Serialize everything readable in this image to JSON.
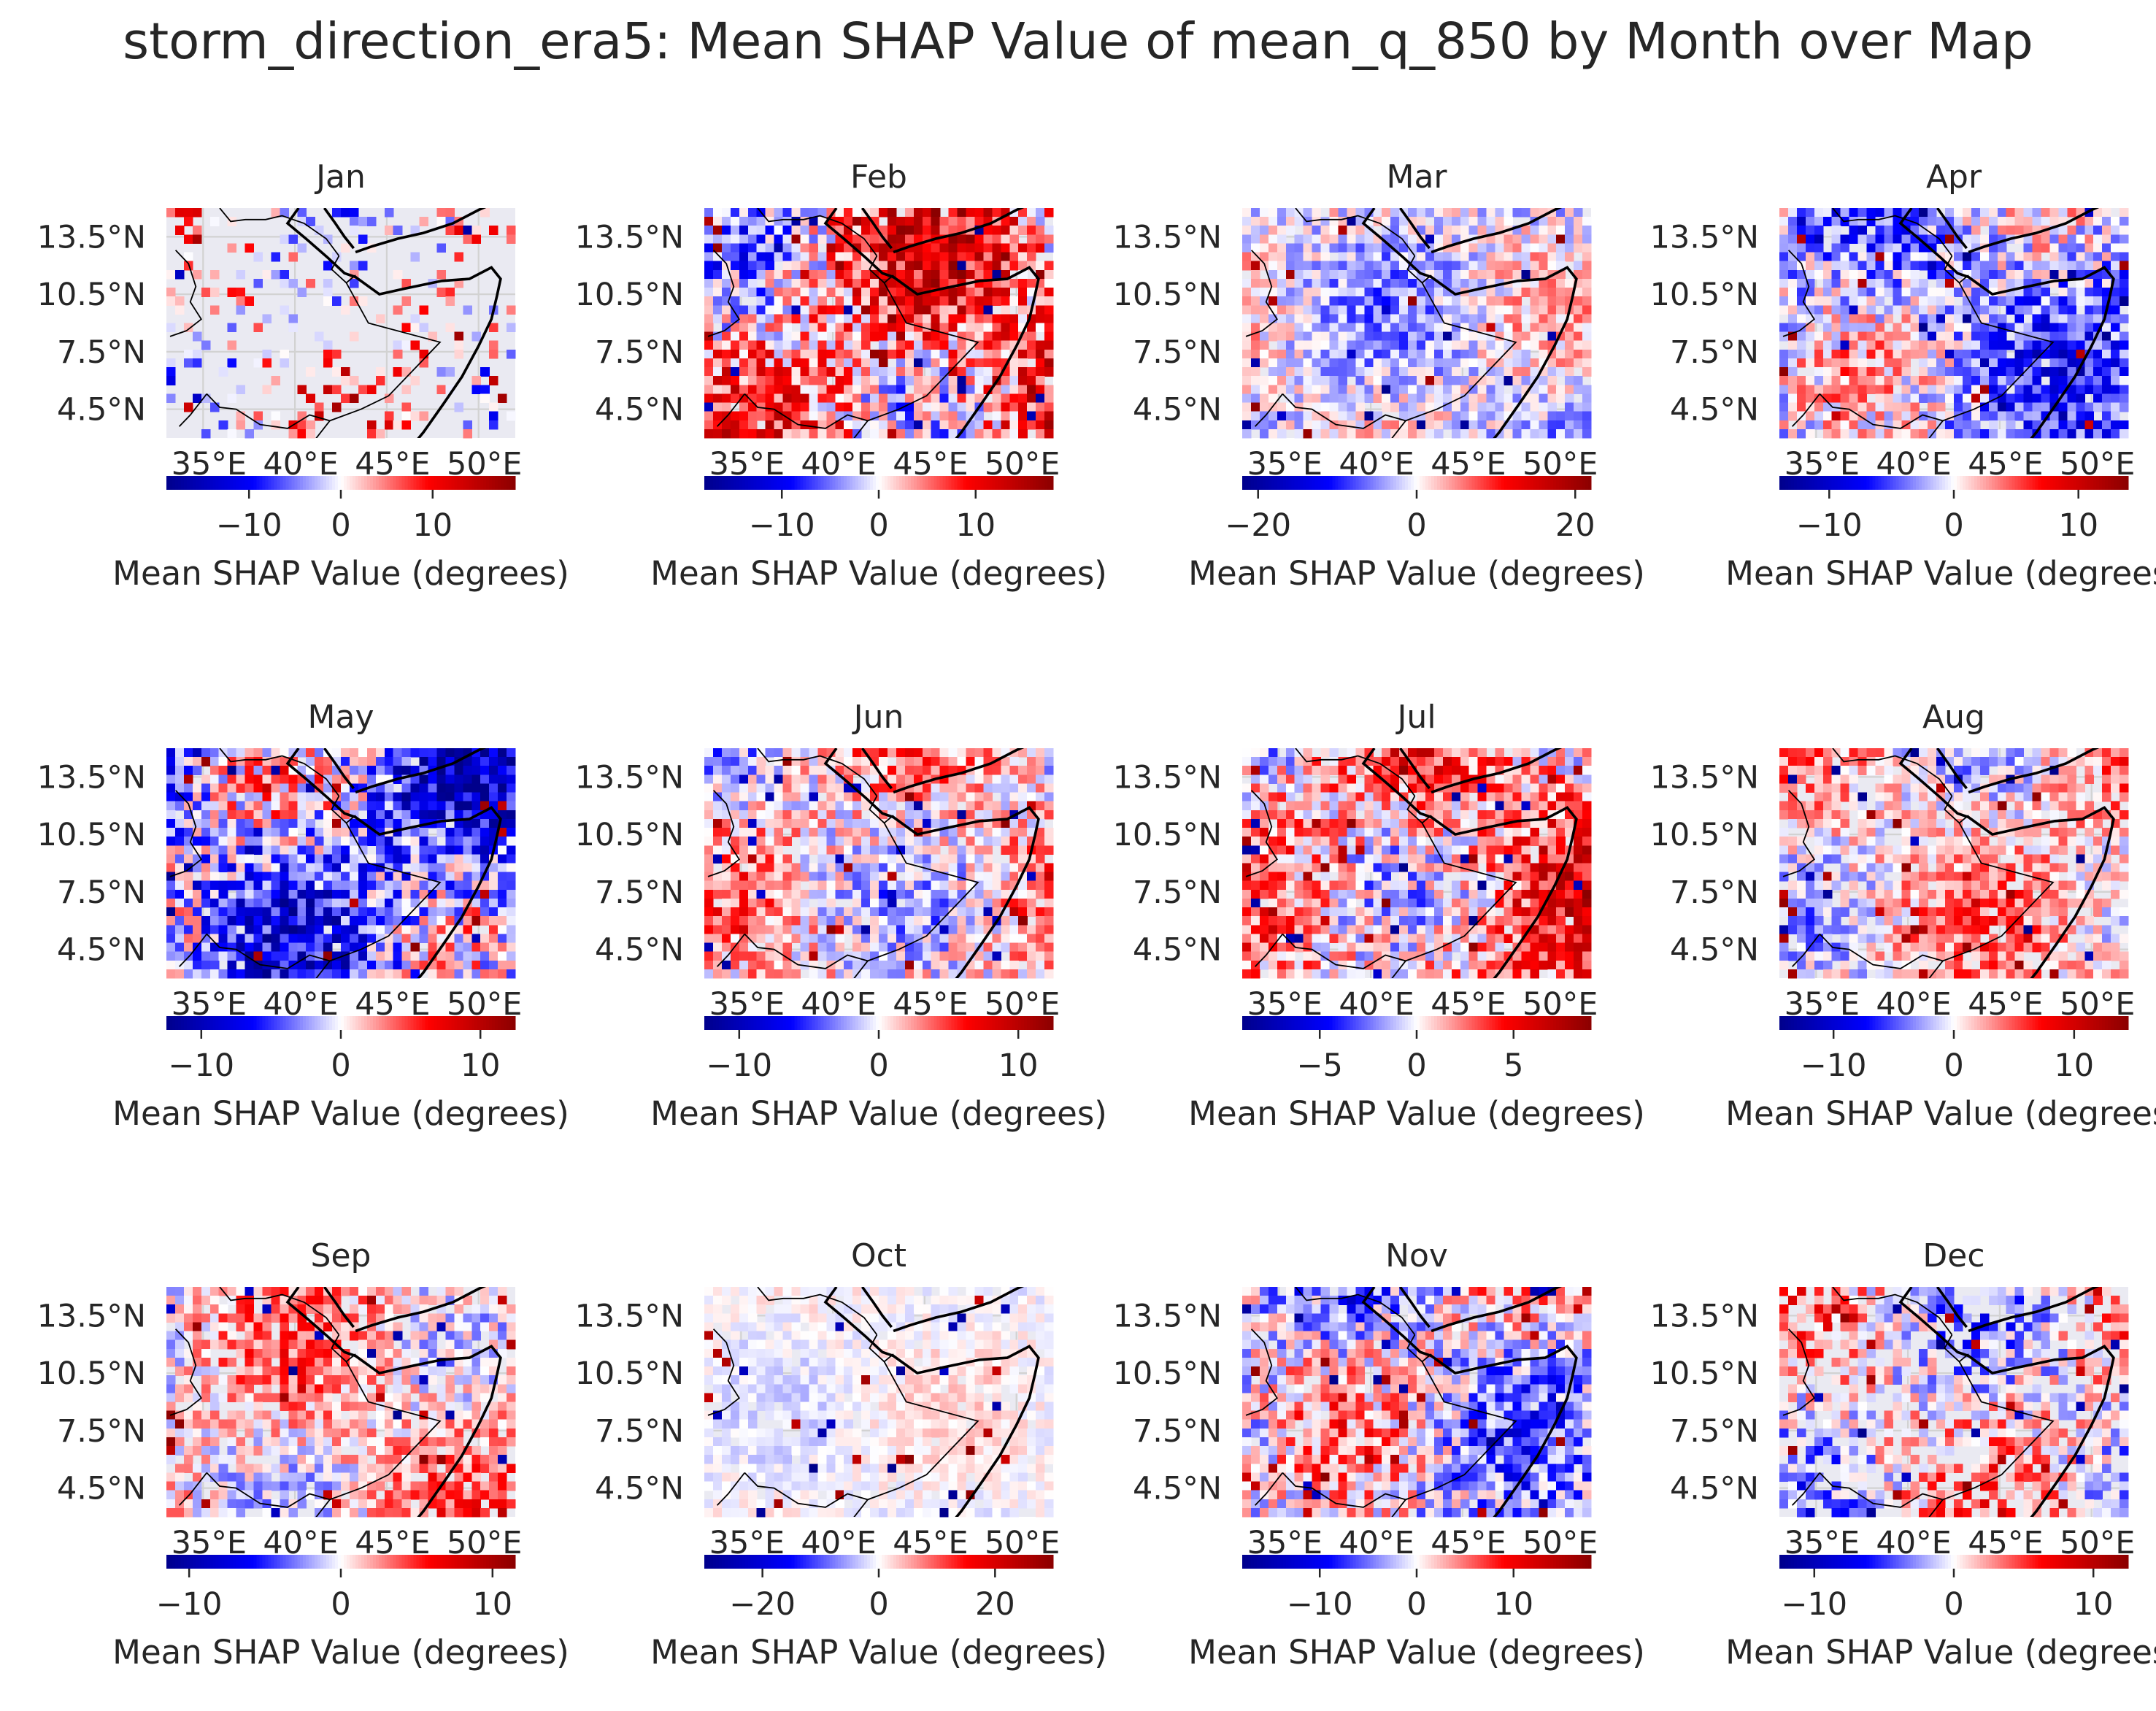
{
  "figure_title": "storm_direction_era5: Mean SHAP Value of mean_q_850 by Month over Map",
  "lat_ticks": [
    "13.5°N",
    "10.5°N",
    "7.5°N",
    "4.5°N"
  ],
  "lon_ticks": [
    "35°E",
    "40°E",
    "45°E",
    "50°E"
  ],
  "colorbar_label": "Mean SHAP Value (degrees)",
  "colormap": "seismic",
  "colors": {
    "background": "#eaeaf2",
    "grid": "#d2d2d2",
    "coast": "#000000",
    "blue": "#00008b",
    "white": "#ffffff",
    "red": "#8b0000"
  },
  "chart_data": {
    "type": "heatmap",
    "panels": [
      {
        "month": "Jan",
        "vmin": -19,
        "vmax": 19,
        "cb_ticks": [
          -10,
          0,
          10
        ],
        "tick_labels": [
          "−10",
          "0",
          "10"
        ],
        "coverage": 0.25,
        "bias": 0.1,
        "mag": 0.7,
        "seed": 11
      },
      {
        "month": "Feb",
        "vmin": -18,
        "vmax": 18,
        "cb_ticks": [
          -10,
          0,
          10
        ],
        "tick_labels": [
          "−10",
          "0",
          "10"
        ],
        "coverage": 0.95,
        "bias": 0.35,
        "mag": 0.7,
        "seed": 23
      },
      {
        "month": "Mar",
        "vmin": -22,
        "vmax": 22,
        "cb_ticks": [
          -20,
          0,
          20
        ],
        "tick_labels": [
          "−20",
          "0",
          "20"
        ],
        "coverage": 0.95,
        "bias": -0.1,
        "mag": 0.4,
        "seed": 37
      },
      {
        "month": "Apr",
        "vmin": -14,
        "vmax": 14,
        "cb_ticks": [
          -10,
          0,
          10
        ],
        "tick_labels": [
          "−10",
          "0",
          "10"
        ],
        "coverage": 0.95,
        "bias": -0.3,
        "mag": 0.55,
        "seed": 41
      },
      {
        "month": "May",
        "vmin": -12.5,
        "vmax": 12.5,
        "cb_ticks": [
          -10,
          0,
          10
        ],
        "tick_labels": [
          "−10",
          "0",
          "10"
        ],
        "coverage": 0.97,
        "bias": -0.35,
        "mag": 0.75,
        "seed": 53
      },
      {
        "month": "Jun",
        "vmin": -12.5,
        "vmax": 12.5,
        "cb_ticks": [
          -10,
          0,
          10
        ],
        "tick_labels": [
          "−10",
          "0",
          "10"
        ],
        "coverage": 0.95,
        "bias": 0.15,
        "mag": 0.5,
        "seed": 61
      },
      {
        "month": "Jul",
        "vmin": -9,
        "vmax": 9,
        "cb_ticks": [
          -5,
          0,
          5
        ],
        "tick_labels": [
          "−5",
          "0",
          "5"
        ],
        "coverage": 0.95,
        "bias": 0.35,
        "mag": 0.6,
        "seed": 71
      },
      {
        "month": "Aug",
        "vmin": -14.5,
        "vmax": 14.5,
        "cb_ticks": [
          -10,
          0,
          10
        ],
        "tick_labels": [
          "−10",
          "0",
          "10"
        ],
        "coverage": 0.85,
        "bias": 0.2,
        "mag": 0.45,
        "seed": 83
      },
      {
        "month": "Sep",
        "vmin": -11.5,
        "vmax": 11.5,
        "cb_ticks": [
          -10,
          0,
          10
        ],
        "tick_labels": [
          "−10",
          "0",
          "10"
        ],
        "coverage": 0.85,
        "bias": 0.25,
        "mag": 0.45,
        "seed": 97
      },
      {
        "month": "Oct",
        "vmin": -30,
        "vmax": 30,
        "cb_ticks": [
          -20,
          0,
          20
        ],
        "tick_labels": [
          "−20",
          "0",
          "20"
        ],
        "coverage": 0.9,
        "bias": 0.0,
        "mag": 0.15,
        "seed": 101
      },
      {
        "month": "Nov",
        "vmin": -18,
        "vmax": 18,
        "cb_ticks": [
          -10,
          0,
          10
        ],
        "tick_labels": [
          "−10",
          "0",
          "10"
        ],
        "coverage": 0.95,
        "bias": -0.1,
        "mag": 0.6,
        "seed": 113
      },
      {
        "month": "Dec",
        "vmin": -12.5,
        "vmax": 12.5,
        "cb_ticks": [
          -10,
          0,
          10
        ],
        "tick_labels": [
          "−10",
          "0",
          "10"
        ],
        "coverage": 0.7,
        "bias": 0.05,
        "mag": 0.55,
        "seed": 127
      }
    ],
    "lat_range": [
      3,
      15
    ],
    "lon_range": [
      33,
      52
    ],
    "grid": true
  }
}
